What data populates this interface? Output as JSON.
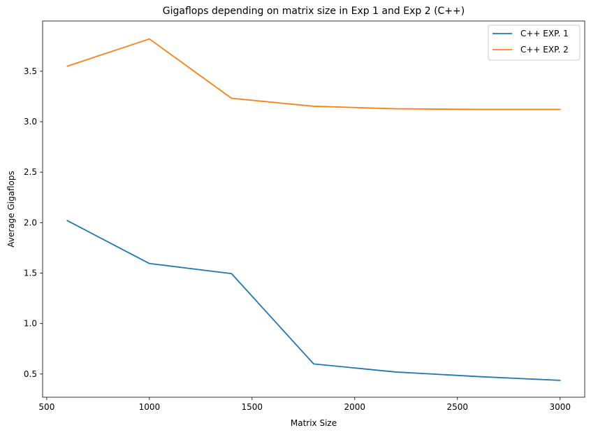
{
  "chart_data": {
    "type": "line",
    "title": "Gigaflops depending on matrix size in Exp 1 and Exp 2 (C++)",
    "xlabel": "Matrix Size",
    "ylabel": "Average Gigaflops",
    "x": [
      600,
      1000,
      1400,
      1800,
      2200,
      2600,
      3000
    ],
    "xticks": [
      500,
      1000,
      1500,
      2000,
      2500,
      3000
    ],
    "yticks": [
      0.5,
      1.0,
      1.5,
      2.0,
      2.5,
      3.0,
      3.5
    ],
    "xtick_labels": [
      "500",
      "1000",
      "1500",
      "2000",
      "2500",
      "3000"
    ],
    "ytick_labels": [
      "0.5",
      "1.0",
      "1.5",
      "2.0",
      "2.5",
      "3.0",
      "3.5"
    ],
    "xlim": [
      480,
      3120
    ],
    "ylim": [
      0.27,
      3.998
    ],
    "grid": false,
    "legend_position": "top-right",
    "series": [
      {
        "name": "C++ EXP. 1",
        "color": "#1f77b4",
        "values": [
          2.02,
          1.595,
          1.495,
          0.6,
          0.52,
          0.475,
          0.437
        ]
      },
      {
        "name": "C++ EXP. 2",
        "color": "#ff7f0e",
        "values": [
          3.55,
          3.82,
          3.232,
          3.153,
          3.128,
          3.122,
          3.122
        ]
      }
    ]
  }
}
